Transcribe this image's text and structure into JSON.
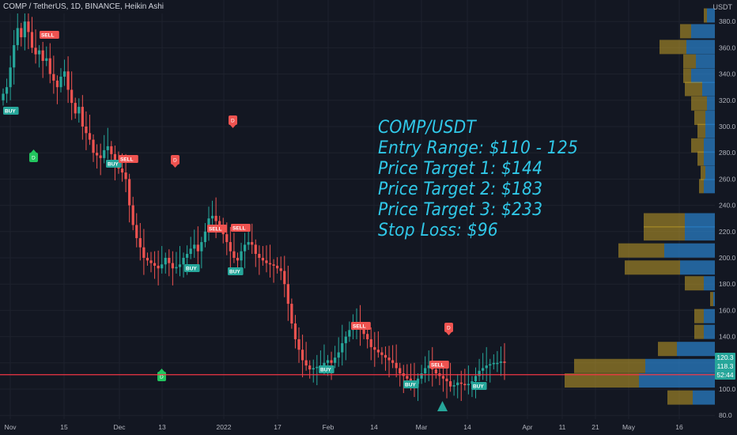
{
  "header": {
    "title": "COMP / TetherUS, 1D, BINANCE, Heikin Ashi"
  },
  "annotation": {
    "lines": [
      "COMP/USDT",
      "Entry Range: $110 - 125",
      "Price Target 1: $144",
      "Price Target 2: $183",
      "Price Target 3: $233",
      "Stop Loss: $96"
    ]
  },
  "price_axis": {
    "unit": "USDT",
    "tag_current": "120.3",
    "tag_price": "118.3",
    "tag_countdown": "52:44"
  },
  "colors": {
    "background": "#131722",
    "up": "#26a69a",
    "down": "#ef5350",
    "line": "#f23645",
    "text": "#30c8e8",
    "profile_gold": "#c4a028",
    "profile_blue": "#2a7ec4"
  },
  "chart_data": {
    "type": "candlestick",
    "title": "COMP / TetherUS, 1D, BINANCE, Heikin Ashi",
    "y_ticks": [
      80,
      100,
      120,
      140,
      160,
      180,
      200,
      220,
      240,
      260,
      280,
      300,
      320,
      340,
      360,
      380
    ],
    "ylim": [
      78,
      395
    ],
    "x_ticks": [
      "Nov",
      "15",
      "Dec",
      "13",
      "2022",
      "17",
      "Feb",
      "14",
      "Mar",
      "14",
      "Apr",
      "11",
      "21",
      "May",
      "16"
    ],
    "horizontal_line": 111,
    "close_series": [
      325,
      330,
      345,
      362,
      375,
      368,
      380,
      372,
      360,
      355,
      358,
      350,
      352,
      340,
      335,
      330,
      338,
      342,
      328,
      318,
      310,
      315,
      300,
      295,
      290,
      280,
      278,
      276,
      282,
      285,
      279,
      272,
      268,
      265,
      260,
      240,
      225,
      215,
      208,
      200,
      198,
      196,
      194,
      192,
      195,
      200,
      196,
      192,
      193,
      195,
      200,
      203,
      207,
      210,
      205,
      212,
      220,
      230,
      232,
      228,
      224,
      218,
      212,
      205,
      200,
      198,
      205,
      210,
      212,
      210,
      203,
      200,
      198,
      196,
      195,
      194,
      192,
      190,
      180,
      165,
      150,
      138,
      130,
      122,
      118,
      115,
      116,
      117,
      118,
      120,
      122,
      120,
      124,
      128,
      135,
      140,
      145,
      148,
      150,
      146,
      142,
      138,
      132,
      130,
      128,
      126,
      124,
      122,
      120,
      116,
      112,
      110,
      108,
      106,
      104,
      108,
      112,
      116,
      118,
      115,
      112,
      110,
      108,
      106,
      102,
      103,
      105,
      104,
      103,
      104,
      106,
      110,
      114,
      116,
      118,
      119,
      120,
      120,
      121,
      120
    ]
  }
}
